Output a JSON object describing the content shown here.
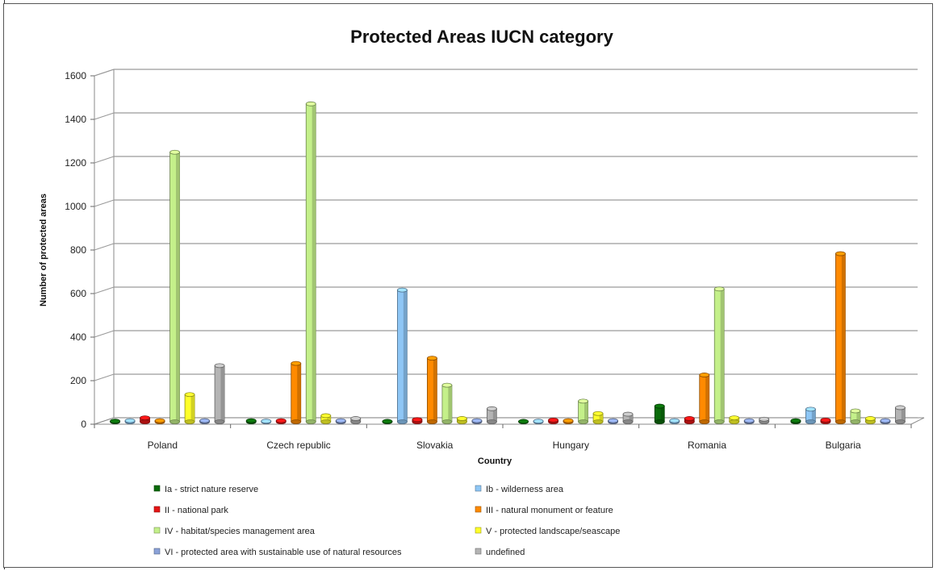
{
  "chart_data": {
    "type": "bar",
    "title": "Protected Areas IUCN category",
    "xlabel": "Country",
    "ylabel": "Number of protected areas",
    "ylim": [
      0,
      1600
    ],
    "yticks": [
      0,
      200,
      400,
      600,
      800,
      1000,
      1200,
      1400,
      1600
    ],
    "grid": true,
    "legend_position": "bottom",
    "categories": [
      "Poland",
      "Czech republic",
      "Slovakia",
      "Hungary",
      "Romania",
      "Bulgaria"
    ],
    "series": [
      {
        "name": "Ia - strict nature reserve",
        "color": "#0a6b0a",
        "values": [
          3,
          5,
          2,
          2,
          72,
          5
        ]
      },
      {
        "name": "Ib - wilderness area",
        "color": "#8ec6f5",
        "values": [
          5,
          3,
          605,
          3,
          5,
          58
        ]
      },
      {
        "name": "II - national park",
        "color": "#e51515",
        "values": [
          18,
          5,
          10,
          8,
          15,
          8
        ]
      },
      {
        "name": "III - natural monument or feature",
        "color": "#ff8a00",
        "values": [
          5,
          268,
          292,
          5,
          215,
          772
        ]
      },
      {
        "name": "IV - habitat/species management area",
        "color": "#c4f08a",
        "values": [
          1238,
          1460,
          168,
          95,
          610,
          50
        ]
      },
      {
        "name": "V - protected landscape/seascape",
        "color": "#ffff2a",
        "values": [
          125,
          28,
          15,
          38,
          18,
          15
        ]
      },
      {
        "name": "VI - protected area with sustainable use of natural resources",
        "color": "#8aa2d8",
        "values": [
          5,
          5,
          5,
          5,
          5,
          5
        ]
      },
      {
        "name": "undefined",
        "color": "#b4b4b4",
        "values": [
          258,
          15,
          60,
          35,
          12,
          65
        ]
      }
    ]
  }
}
